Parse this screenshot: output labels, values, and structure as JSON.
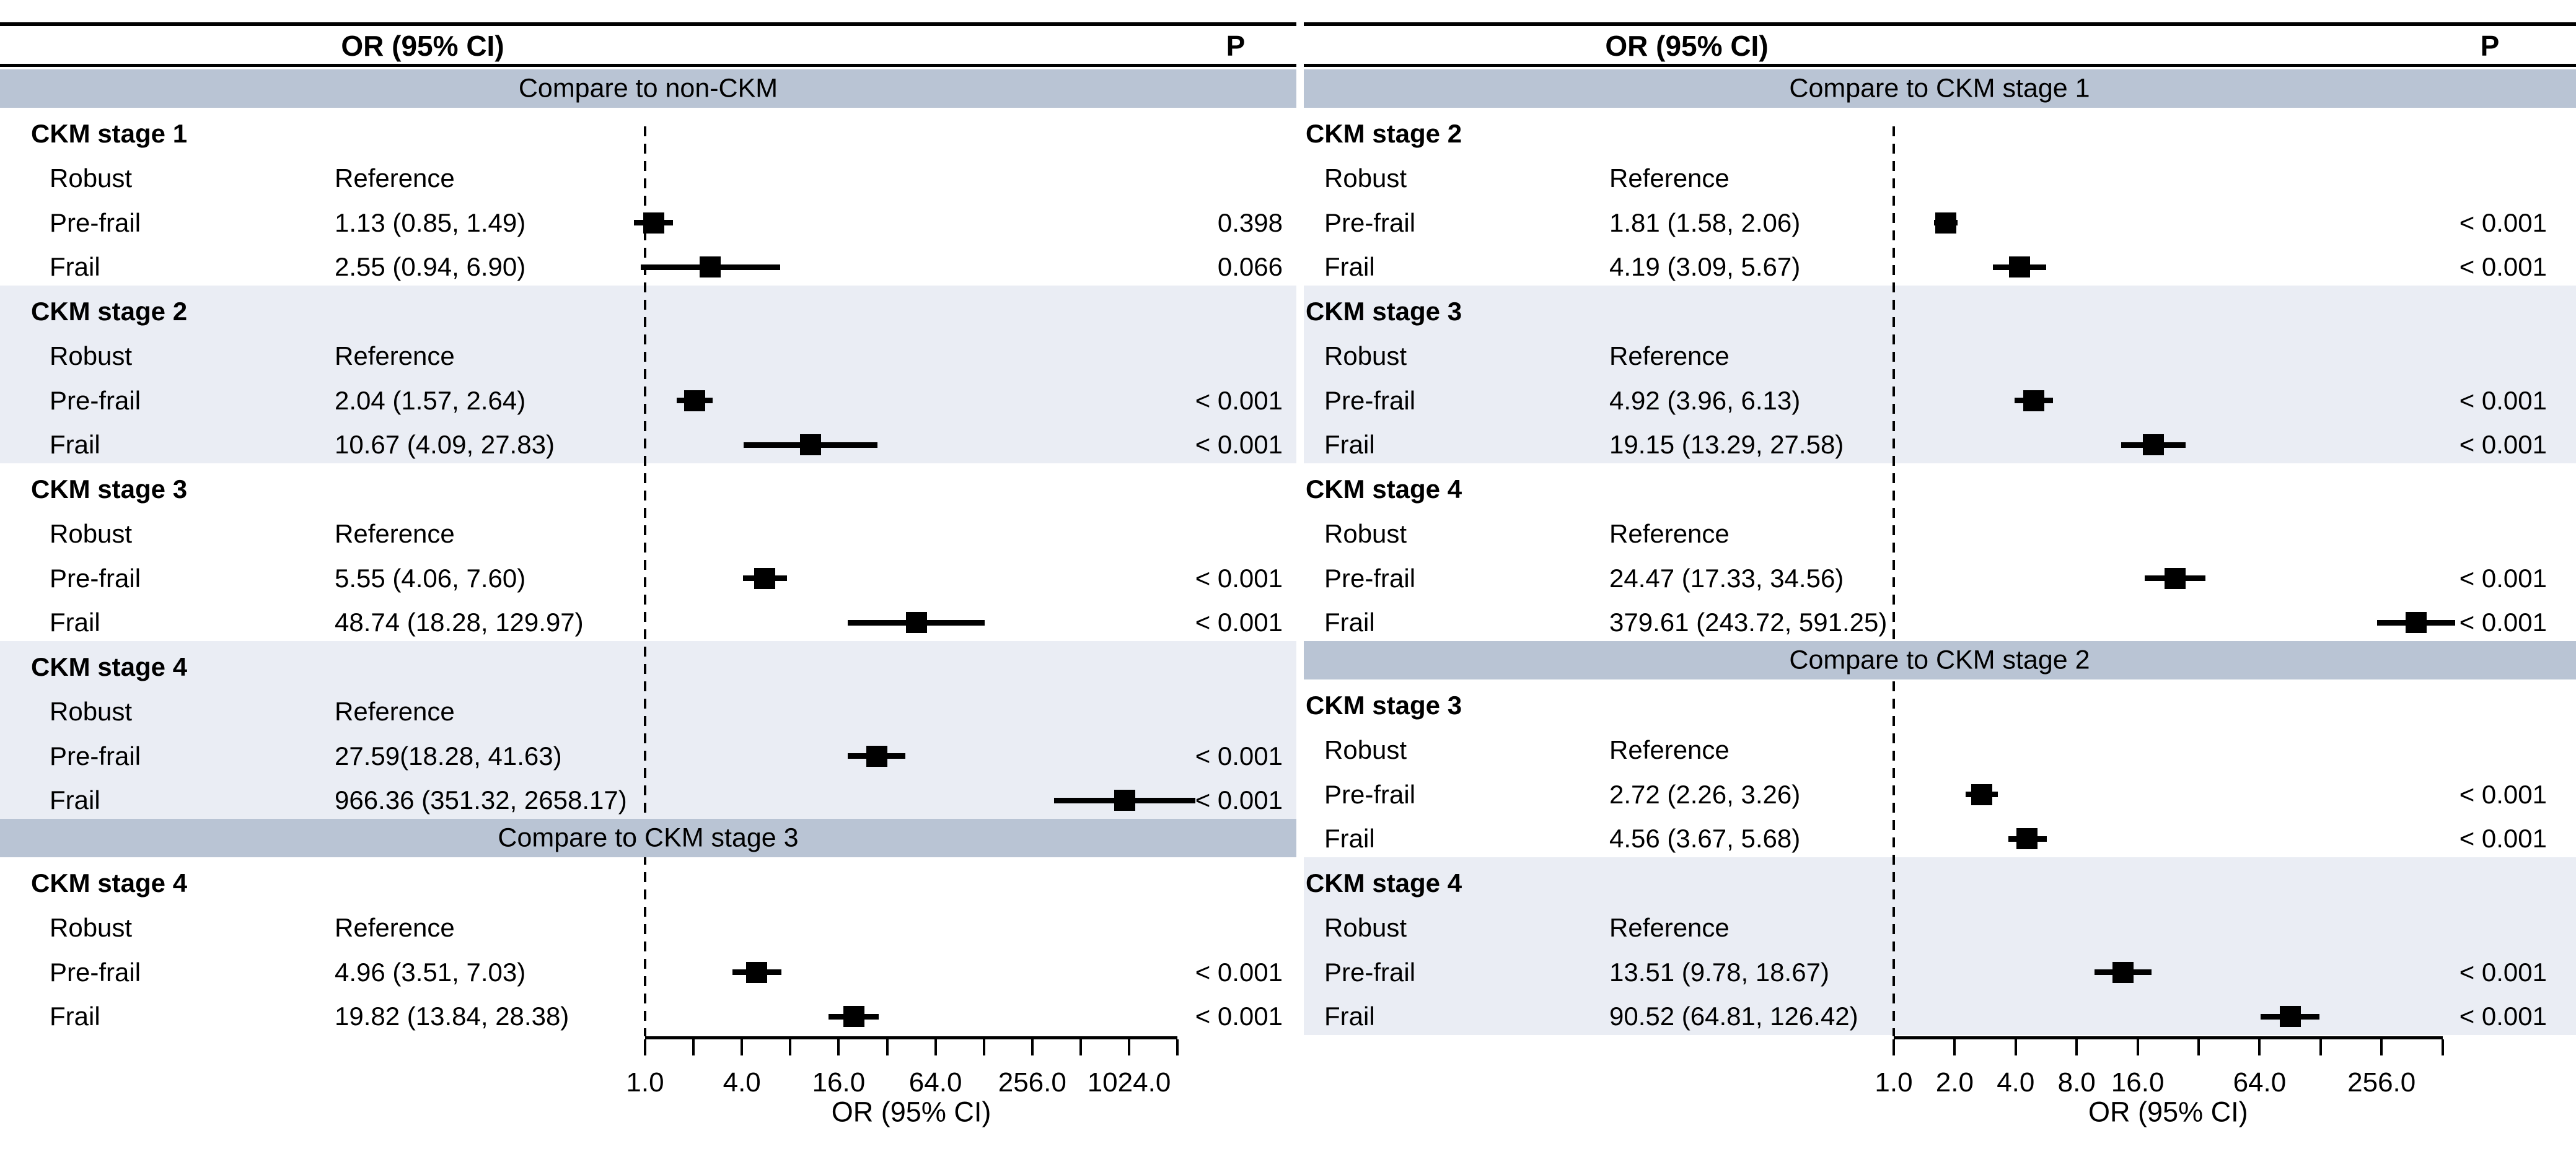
{
  "colors": {
    "band_bg": "#b9c4d4",
    "row_shade_bg": "#eaedf4",
    "line": "#000000",
    "marker": "#000000",
    "text": "#000000",
    "background": "#ffffff"
  },
  "chart_data": {
    "type": "forest",
    "panels": [
      {
        "name": "left",
        "header": {
          "or": "OR (95% CI)",
          "p": "P"
        },
        "axis": {
          "title": "OR (95% CI)",
          "scale": "log",
          "base": 2,
          "min": 1,
          "max": 2048,
          "reference_line": 1.0,
          "ticks": [
            {
              "v": 1,
              "label": "1.0"
            },
            {
              "v": 2
            },
            {
              "v": 4,
              "label": "4.0"
            },
            {
              "v": 8
            },
            {
              "v": 16,
              "label": "16.0"
            },
            {
              "v": 32
            },
            {
              "v": 64,
              "label": "64.0"
            },
            {
              "v": 128
            },
            {
              "v": 256,
              "label": "256.0"
            },
            {
              "v": 512
            },
            {
              "v": 1024,
              "label": "1024.0"
            },
            {
              "v": 2048
            }
          ]
        },
        "sections": [
          {
            "type": "band",
            "label": "Compare to non-CKM"
          },
          {
            "type": "group",
            "label": "CKM stage 1",
            "shaded": false,
            "rows": [
              {
                "label": "Robust",
                "text": "Reference"
              },
              {
                "label": "Pre-frail",
                "text": "1.13 (0.85, 1.49)",
                "or": 1.13,
                "lo": 0.85,
                "hi": 1.49,
                "p": "0.398"
              },
              {
                "label": "Frail",
                "text": "2.55 (0.94, 6.90)",
                "or": 2.55,
                "lo": 0.94,
                "hi": 6.9,
                "p": "0.066"
              }
            ]
          },
          {
            "type": "group",
            "label": "CKM stage 2",
            "shaded": true,
            "rows": [
              {
                "label": "Robust",
                "text": "Reference"
              },
              {
                "label": "Pre-frail",
                "text": "2.04 (1.57, 2.64)",
                "or": 2.04,
                "lo": 1.57,
                "hi": 2.64,
                "p": "< 0.001"
              },
              {
                "label": "Frail",
                "text": "10.67 (4.09, 27.83)",
                "or": 10.67,
                "lo": 4.09,
                "hi": 27.83,
                "p": "< 0.001"
              }
            ]
          },
          {
            "type": "group",
            "label": "CKM stage 3",
            "shaded": false,
            "rows": [
              {
                "label": "Robust",
                "text": "Reference"
              },
              {
                "label": "Pre-frail",
                "text": "5.55 (4.06, 7.60)",
                "or": 5.55,
                "lo": 4.06,
                "hi": 7.6,
                "p": "< 0.001"
              },
              {
                "label": "Frail",
                "text": "48.74 (18.28, 129.97)",
                "or": 48.74,
                "lo": 18.28,
                "hi": 129.97,
                "p": "< 0.001"
              }
            ]
          },
          {
            "type": "group",
            "label": "CKM stage 4",
            "shaded": true,
            "rows": [
              {
                "label": "Robust",
                "text": "Reference"
              },
              {
                "label": "Pre-frail",
                "text": "27.59(18.28, 41.63)",
                "or": 27.59,
                "lo": 18.28,
                "hi": 41.63,
                "p": "< 0.001"
              },
              {
                "label": "Frail",
                "text": "966.36 (351.32, 2658.17)",
                "or": 966.36,
                "lo": 351.32,
                "hi": 2658.17,
                "p": "< 0.001"
              }
            ]
          },
          {
            "type": "band",
            "label": "Compare to CKM stage 3"
          },
          {
            "type": "group",
            "label": "CKM stage 4",
            "shaded": false,
            "rows": [
              {
                "label": "Robust",
                "text": "Reference"
              },
              {
                "label": "Pre-frail",
                "text": "4.96 (3.51, 7.03)",
                "or": 4.96,
                "lo": 3.51,
                "hi": 7.03,
                "p": "< 0.001"
              },
              {
                "label": "Frail",
                "text": "19.82 (13.84, 28.38)",
                "or": 19.82,
                "lo": 13.84,
                "hi": 28.38,
                "p": "< 0.001"
              }
            ]
          }
        ]
      },
      {
        "name": "right",
        "header": {
          "or": "OR (95% CI)",
          "p": "P"
        },
        "axis": {
          "title": "OR (95% CI)",
          "scale": "log",
          "base": 2,
          "min": 1,
          "max": 512,
          "reference_line": 1.0,
          "ticks": [
            {
              "v": 1,
              "label": "1.0"
            },
            {
              "v": 2,
              "label": "2.0"
            },
            {
              "v": 4,
              "label": "4.0"
            },
            {
              "v": 8,
              "label": "8.0"
            },
            {
              "v": 16,
              "label": "16.0"
            },
            {
              "v": 32
            },
            {
              "v": 64,
              "label": "64.0"
            },
            {
              "v": 128
            },
            {
              "v": 256,
              "label": "256.0"
            },
            {
              "v": 512
            }
          ]
        },
        "sections": [
          {
            "type": "band",
            "label": "Compare to CKM stage 1"
          },
          {
            "type": "group",
            "label": "CKM stage 2",
            "shaded": false,
            "rows": [
              {
                "label": "Robust",
                "text": "Reference"
              },
              {
                "label": "Pre-frail",
                "text": "1.81 (1.58, 2.06)",
                "or": 1.81,
                "lo": 1.58,
                "hi": 2.06,
                "p": "< 0.001"
              },
              {
                "label": "Frail",
                "text": "4.19 (3.09, 5.67)",
                "or": 4.19,
                "lo": 3.09,
                "hi": 5.67,
                "p": "< 0.001"
              }
            ]
          },
          {
            "type": "group",
            "label": "CKM stage 3",
            "shaded": true,
            "rows": [
              {
                "label": "Robust",
                "text": "Reference"
              },
              {
                "label": "Pre-frail",
                "text": "4.92 (3.96, 6.13)",
                "or": 4.92,
                "lo": 3.96,
                "hi": 6.13,
                "p": "< 0.001"
              },
              {
                "label": "Frail",
                "text": "19.15 (13.29, 27.58)",
                "or": 19.15,
                "lo": 13.29,
                "hi": 27.58,
                "p": "< 0.001"
              }
            ]
          },
          {
            "type": "group",
            "label": "CKM stage 4",
            "shaded": false,
            "rows": [
              {
                "label": "Robust",
                "text": "Reference"
              },
              {
                "label": "Pre-frail",
                "text": "24.47 (17.33, 34.56)",
                "or": 24.47,
                "lo": 17.33,
                "hi": 34.56,
                "p": "< 0.001"
              },
              {
                "label": "Frail",
                "text": "379.61 (243.72, 591.25)",
                "or": 379.61,
                "lo": 243.72,
                "hi": 591.25,
                "p": "< 0.001"
              }
            ]
          },
          {
            "type": "band",
            "label": "Compare to CKM stage 2"
          },
          {
            "type": "group",
            "label": "CKM stage 3",
            "shaded": false,
            "rows": [
              {
                "label": "Robust",
                "text": "Reference"
              },
              {
                "label": "Pre-frail",
                "text": "2.72 (2.26, 3.26)",
                "or": 2.72,
                "lo": 2.26,
                "hi": 3.26,
                "p": "< 0.001"
              },
              {
                "label": "Frail",
                "text": "4.56 (3.67, 5.68)",
                "or": 4.56,
                "lo": 3.67,
                "hi": 5.68,
                "p": "< 0.001"
              }
            ]
          },
          {
            "type": "group",
            "label": "CKM stage 4",
            "shaded": true,
            "rows": [
              {
                "label": "Robust",
                "text": "Reference"
              },
              {
                "label": "Pre-frail",
                "text": "13.51 (9.78, 18.67)",
                "or": 13.51,
                "lo": 9.78,
                "hi": 18.67,
                "p": "< 0.001"
              },
              {
                "label": "Frail",
                "text": "90.52 (64.81, 126.42)",
                "or": 90.52,
                "lo": 64.81,
                "hi": 126.42,
                "p": "< 0.001"
              }
            ]
          }
        ]
      }
    ]
  }
}
